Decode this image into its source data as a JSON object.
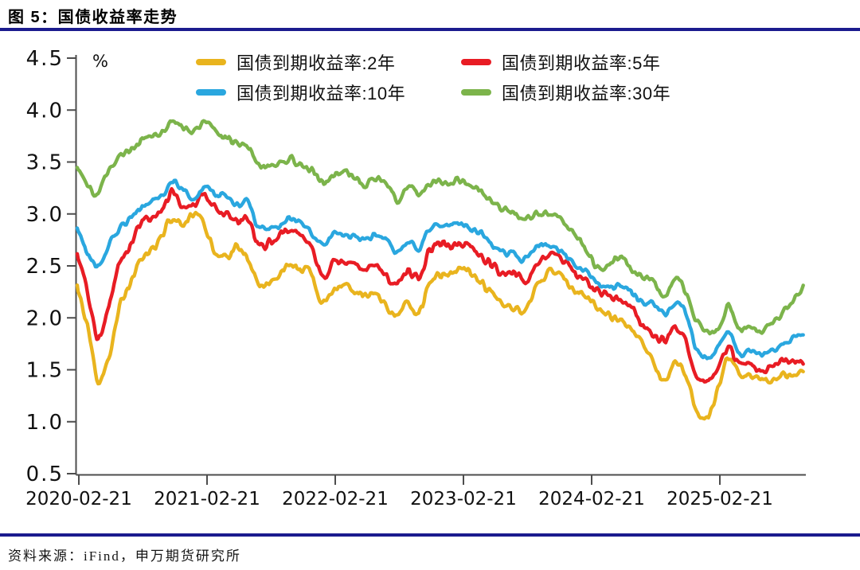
{
  "figure": {
    "title": "图 5：国债收益率走势",
    "source": "资料来源：iFind，申万期货研究所",
    "divider_color": "#1B1B8E"
  },
  "chart_data": {
    "type": "line",
    "title": "国债收益率走势",
    "unit_label": "%",
    "xlabel": "",
    "ylabel": "%",
    "ylim": [
      0.5,
      4.5
    ],
    "grid": false,
    "legend_position": "top-inside",
    "y_ticks": [
      4.5,
      4.0,
      3.5,
      3.0,
      2.5,
      2.0,
      1.5,
      1.0,
      0.5
    ],
    "y_tick_labels": [
      "4.5",
      "4.0",
      "3.5",
      "3.0",
      "2.5",
      "2.0",
      "1.5",
      "1.0",
      "0.5"
    ],
    "x_tick_labels": [
      "2020-02-21",
      "2021-02-21",
      "2022-02-21",
      "2023-02-21",
      "2024-02-21",
      "2025-02-21"
    ],
    "axis_color": "#4D4D4D",
    "tick_text_color": "#111111",
    "dates": [
      "2020-02",
      "2020-03",
      "2020-04",
      "2020-05",
      "2020-06",
      "2020-07",
      "2020-08",
      "2020-09",
      "2020-10",
      "2020-11",
      "2020-12",
      "2021-01",
      "2021-02",
      "2021-03",
      "2021-04",
      "2021-05",
      "2021-06",
      "2021-07",
      "2021-08",
      "2021-09",
      "2021-10",
      "2021-11",
      "2021-12",
      "2022-01",
      "2022-02",
      "2022-03",
      "2022-04",
      "2022-05",
      "2022-06",
      "2022-07",
      "2022-08",
      "2022-09",
      "2022-10",
      "2022-11",
      "2022-12",
      "2023-01",
      "2023-02",
      "2023-03",
      "2023-04",
      "2023-05",
      "2023-06",
      "2023-07",
      "2023-08",
      "2023-09",
      "2023-10",
      "2023-11",
      "2023-12",
      "2024-01",
      "2024-02",
      "2024-03",
      "2024-04",
      "2024-05",
      "2024-06",
      "2024-07",
      "2024-08",
      "2024-09",
      "2024-10",
      "2024-11",
      "2024-12",
      "2025-01",
      "2025-02",
      "2025-03",
      "2025-04",
      "2025-05",
      "2025-06",
      "2025-07",
      "2025-08",
      "2025-09",
      "2025-10"
    ],
    "series": [
      {
        "key": "2y",
        "name": "国债到期收益率:2年",
        "color": "#E9B41E",
        "values": [
          2.28,
          1.9,
          1.38,
          1.62,
          2.12,
          2.32,
          2.56,
          2.66,
          2.8,
          2.96,
          2.88,
          3.0,
          2.86,
          2.64,
          2.58,
          2.68,
          2.58,
          2.3,
          2.32,
          2.44,
          2.5,
          2.46,
          2.42,
          2.12,
          2.28,
          2.32,
          2.28,
          2.2,
          2.26,
          2.1,
          2.02,
          2.14,
          2.05,
          2.32,
          2.4,
          2.42,
          2.48,
          2.4,
          2.32,
          2.22,
          2.14,
          2.1,
          2.06,
          2.28,
          2.42,
          2.45,
          2.34,
          2.24,
          2.18,
          2.08,
          2.0,
          1.98,
          1.88,
          1.75,
          1.56,
          1.38,
          1.56,
          1.42,
          1.12,
          1.04,
          1.3,
          1.6,
          1.45,
          1.44,
          1.4,
          1.42,
          1.45,
          1.42,
          1.5
        ]
      },
      {
        "key": "5y",
        "name": "国债到期收益率:5年",
        "color": "#E81C24",
        "values": [
          2.6,
          2.24,
          1.82,
          2.12,
          2.52,
          2.68,
          2.9,
          2.98,
          3.06,
          3.2,
          3.06,
          3.08,
          3.18,
          3.04,
          2.98,
          2.94,
          2.94,
          2.7,
          2.72,
          2.8,
          2.86,
          2.8,
          2.7,
          2.4,
          2.52,
          2.55,
          2.5,
          2.45,
          2.52,
          2.4,
          2.32,
          2.46,
          2.38,
          2.65,
          2.72,
          2.7,
          2.72,
          2.66,
          2.58,
          2.5,
          2.42,
          2.42,
          2.36,
          2.52,
          2.6,
          2.62,
          2.5,
          2.4,
          2.32,
          2.24,
          2.2,
          2.16,
          2.08,
          1.94,
          1.84,
          1.8,
          1.92,
          1.78,
          1.44,
          1.4,
          1.5,
          1.72,
          1.54,
          1.54,
          1.5,
          1.54,
          1.6,
          1.56,
          1.6
        ]
      },
      {
        "key": "10y",
        "name": "国债到期收益率:10年",
        "color": "#2AA7DF",
        "values": [
          2.86,
          2.62,
          2.5,
          2.7,
          2.86,
          2.96,
          3.05,
          3.12,
          3.18,
          3.3,
          3.22,
          3.16,
          3.26,
          3.2,
          3.16,
          3.1,
          3.1,
          2.88,
          2.86,
          2.88,
          2.96,
          2.9,
          2.82,
          2.7,
          2.8,
          2.8,
          2.78,
          2.74,
          2.8,
          2.74,
          2.62,
          2.74,
          2.66,
          2.86,
          2.9,
          2.9,
          2.9,
          2.86,
          2.8,
          2.7,
          2.64,
          2.62,
          2.56,
          2.68,
          2.7,
          2.66,
          2.58,
          2.5,
          2.42,
          2.3,
          2.28,
          2.3,
          2.24,
          2.14,
          2.14,
          2.04,
          2.14,
          2.04,
          1.7,
          1.62,
          1.7,
          1.88,
          1.64,
          1.68,
          1.64,
          1.68,
          1.74,
          1.8,
          1.85
        ]
      },
      {
        "key": "30y",
        "name": "国债到期收益率:30年",
        "color": "#7CB44B",
        "values": [
          3.45,
          3.3,
          3.2,
          3.42,
          3.56,
          3.62,
          3.7,
          3.74,
          3.8,
          3.9,
          3.84,
          3.8,
          3.88,
          3.78,
          3.74,
          3.68,
          3.66,
          3.48,
          3.46,
          3.5,
          3.52,
          3.48,
          3.42,
          3.3,
          3.38,
          3.4,
          3.35,
          3.28,
          3.34,
          3.28,
          3.14,
          3.26,
          3.2,
          3.28,
          3.3,
          3.3,
          3.32,
          3.28,
          3.22,
          3.12,
          3.04,
          3.0,
          2.94,
          3.02,
          3.0,
          2.98,
          2.88,
          2.76,
          2.6,
          2.46,
          2.54,
          2.57,
          2.48,
          2.38,
          2.36,
          2.22,
          2.36,
          2.26,
          1.96,
          1.86,
          1.9,
          2.1,
          1.88,
          1.92,
          1.88,
          1.94,
          2.05,
          2.15,
          2.28
        ]
      }
    ]
  }
}
